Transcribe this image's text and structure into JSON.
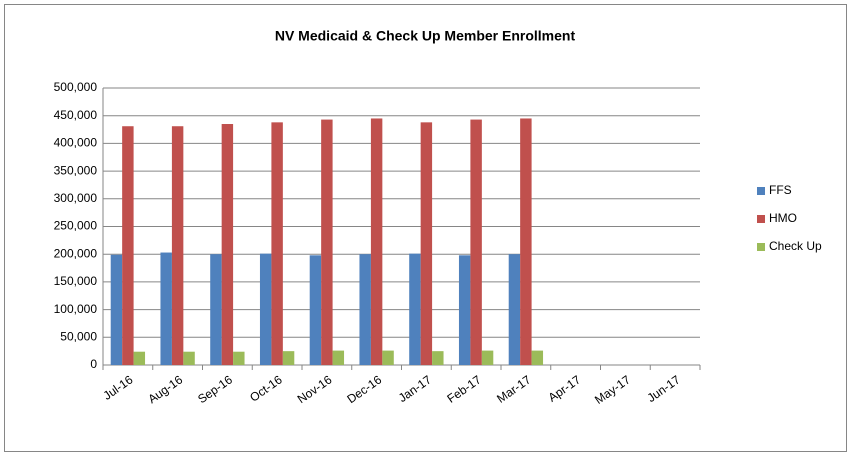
{
  "chart_data": {
    "type": "bar",
    "title": "NV Medicaid & Check Up Member Enrollment",
    "categories": [
      "Jul-16",
      "Aug-16",
      "Sep-16",
      "Oct-16",
      "Nov-16",
      "Dec-16",
      "Jan-17",
      "Feb-17",
      "Mar-17",
      "Apr-17",
      "May-17",
      "Jun-17"
    ],
    "series": [
      {
        "name": "FFS",
        "color": "#4f81bd",
        "values": [
          199000,
          203000,
          200000,
          201000,
          198000,
          200000,
          201000,
          198000,
          200000,
          null,
          null,
          null
        ]
      },
      {
        "name": "HMO",
        "color": "#c0504d",
        "values": [
          431000,
          431000,
          435000,
          438000,
          443000,
          445000,
          438000,
          443000,
          445000,
          null,
          null,
          null
        ]
      },
      {
        "name": "Check Up",
        "color": "#9bbb59",
        "values": [
          24000,
          24000,
          24000,
          25000,
          26000,
          26000,
          25000,
          26000,
          26000,
          null,
          null,
          null
        ]
      }
    ],
    "ylim": [
      0,
      500000
    ],
    "yticks": [
      0,
      {
        "value": 50000,
        "label": "50,000"
      },
      {
        "value": 100000,
        "label": "100,000"
      },
      {
        "value": 150000,
        "label": "150,000"
      },
      {
        "value": 200000,
        "label": "200,000"
      },
      {
        "value": 250000,
        "label": "250,000"
      },
      {
        "value": 300000,
        "label": "300,000"
      },
      {
        "value": 350000,
        "label": "350,000"
      },
      {
        "value": 400000,
        "label": "400,000"
      },
      {
        "value": 450000,
        "label": "450,000"
      },
      {
        "value": 500000,
        "label": "500,000"
      }
    ],
    "grid": true,
    "legend": "right"
  }
}
